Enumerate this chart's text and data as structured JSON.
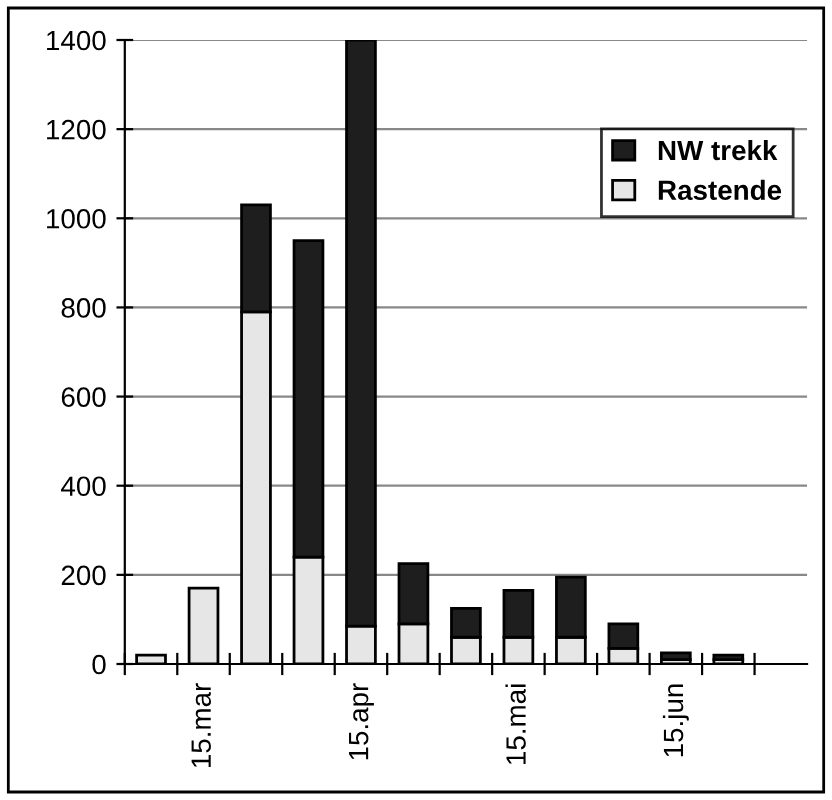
{
  "chart_data": {
    "type": "bar",
    "stacked": true,
    "categories": [
      null,
      "15.mar",
      null,
      null,
      "15.apr",
      null,
      null,
      "15.mai",
      null,
      null,
      "15.jun",
      null,
      null
    ],
    "series": [
      {
        "name": "Rastende",
        "color": "#e6e6e6",
        "values": [
          20,
          170,
          790,
          240,
          85,
          90,
          60,
          60,
          60,
          35,
          10,
          10,
          null
        ]
      },
      {
        "name": "NW trekk",
        "color": "#1e1e1e",
        "values": [
          null,
          null,
          240,
          710,
          1315,
          135,
          65,
          105,
          135,
          55,
          15,
          10,
          null
        ]
      }
    ],
    "ylim": [
      0,
      1400
    ],
    "yticks": [
      0,
      200,
      400,
      600,
      800,
      1000,
      1200,
      1400
    ],
    "grid": "y",
    "legend": "top right"
  }
}
